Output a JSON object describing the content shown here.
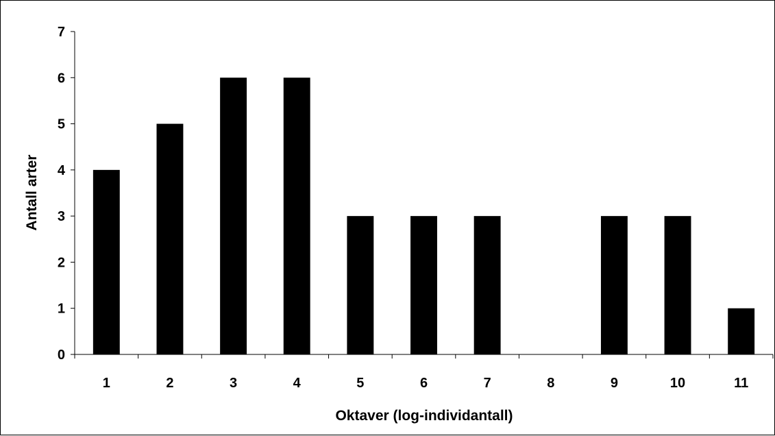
{
  "chart_data": {
    "type": "bar",
    "title": "",
    "xlabel": "Oktaver (log-individantall)",
    "ylabel": "Antall arter",
    "categories": [
      "1",
      "2",
      "3",
      "4",
      "5",
      "6",
      "7",
      "8",
      "9",
      "10",
      "11"
    ],
    "values": [
      4,
      5,
      6,
      6,
      3,
      3,
      3,
      0,
      3,
      3,
      1
    ],
    "ylim": [
      0,
      7
    ],
    "yticks": [
      "0",
      "1",
      "2",
      "3",
      "4",
      "5",
      "6",
      "7"
    ],
    "grid": false,
    "legend": "none",
    "bar_color": "#000000"
  }
}
